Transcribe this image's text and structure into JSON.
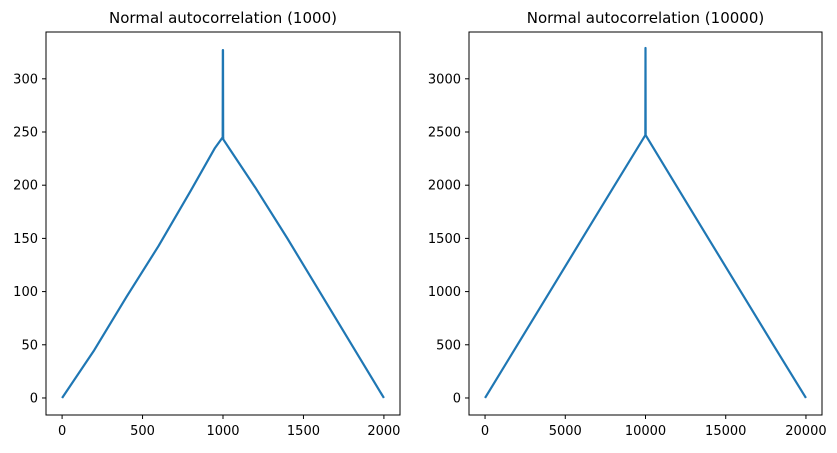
{
  "chart_data": [
    {
      "type": "line",
      "title": "Normal autocorrelation (1000)",
      "xlabel": "",
      "ylabel": "",
      "xlim": [
        -100,
        2100
      ],
      "ylim": [
        -16,
        344
      ],
      "xticks": [
        0,
        500,
        1000,
        1500,
        2000
      ],
      "xtick_labels": [
        "0",
        "500",
        "1000",
        "1500",
        "2000"
      ],
      "yticks": [
        0,
        50,
        100,
        150,
        200,
        250,
        300
      ],
      "ytick_labels": [
        "0",
        "50",
        "100",
        "150",
        "200",
        "250",
        "300"
      ],
      "grid": false,
      "color": "#1f77b4",
      "series": [
        {
          "x": [
            0,
            200,
            400,
            600,
            800,
            950,
            998,
            999,
            1000,
            1001,
            1002,
            1050,
            1200,
            1400,
            1600,
            1800,
            2000
          ],
          "y": [
            0,
            45,
            95,
            143,
            195,
            235,
            245,
            327,
            327,
            245,
            243,
            232,
            198,
            150,
            100,
            50,
            0
          ]
        }
      ]
    },
    {
      "type": "line",
      "title": "Normal autocorrelation (10000)",
      "xlabel": "",
      "ylabel": "",
      "xlim": [
        -1000,
        21000
      ],
      "ylim": [
        -160,
        3440
      ],
      "xticks": [
        0,
        5000,
        10000,
        15000,
        20000
      ],
      "xtick_labels": [
        "0",
        "5000",
        "10000",
        "15000",
        "20000"
      ],
      "yticks": [
        0,
        500,
        1000,
        1500,
        2000,
        2500,
        3000
      ],
      "ytick_labels": [
        "0",
        "500",
        "1000",
        "1500",
        "2000",
        "2500",
        "3000"
      ],
      "grid": false,
      "color": "#1f77b4",
      "series": [
        {
          "x": [
            0,
            2000,
            4000,
            6000,
            8000,
            9990,
            10000,
            10010,
            12000,
            14000,
            16000,
            18000,
            20000
          ],
          "y": [
            0,
            495,
            990,
            1485,
            1980,
            2470,
            3290,
            2470,
            1975,
            1480,
            985,
            490,
            0
          ]
        }
      ]
    }
  ]
}
